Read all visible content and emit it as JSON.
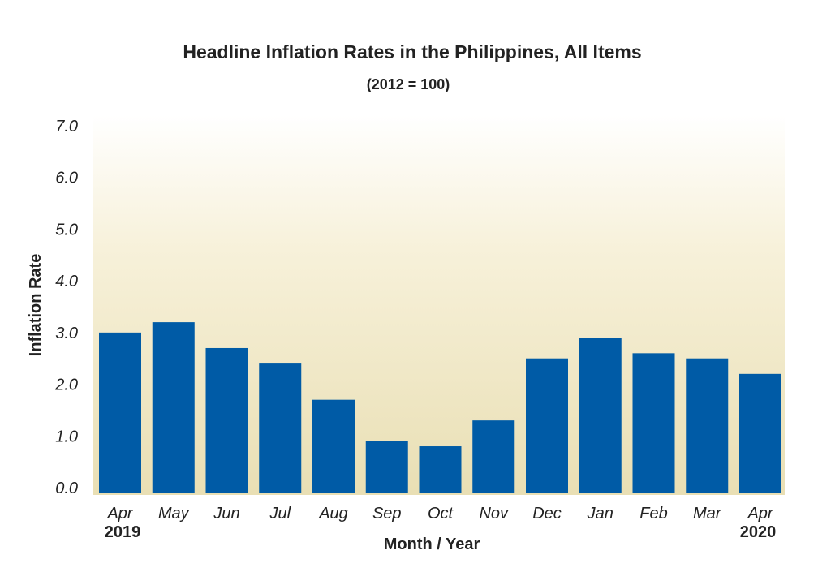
{
  "chart_data": {
    "type": "bar",
    "title": "Headline Inflation Rates in the Philippines, All Items",
    "subtitle": "(2012 = 100)",
    "xlabel": "Month / Year",
    "ylabel": "Inflation Rate",
    "categories": [
      "Apr",
      "May",
      "Jun",
      "Jul",
      "Aug",
      "Sep",
      "Oct",
      "Nov",
      "Dec",
      "Jan",
      "Feb",
      "Mar",
      "Apr"
    ],
    "category_years": [
      "2019",
      "",
      "",
      "",
      "",
      "",
      "",
      "",
      "",
      "",
      "",
      "",
      "2020"
    ],
    "values": [
      3.0,
      3.2,
      2.7,
      2.4,
      1.7,
      0.9,
      0.8,
      1.3,
      2.5,
      2.9,
      2.6,
      2.5,
      2.2
    ],
    "ylim": [
      0,
      7
    ],
    "yticks": [
      "0.0",
      "1.0",
      "2.0",
      "3.0",
      "4.0",
      "5.0",
      "6.0",
      "7.0"
    ],
    "grid": false,
    "legend": "none",
    "colors": {
      "bar": "#005BA6",
      "plot_top": "#FFFFFF",
      "plot_bottom": "#E9DFB4",
      "text": "#222222"
    }
  }
}
